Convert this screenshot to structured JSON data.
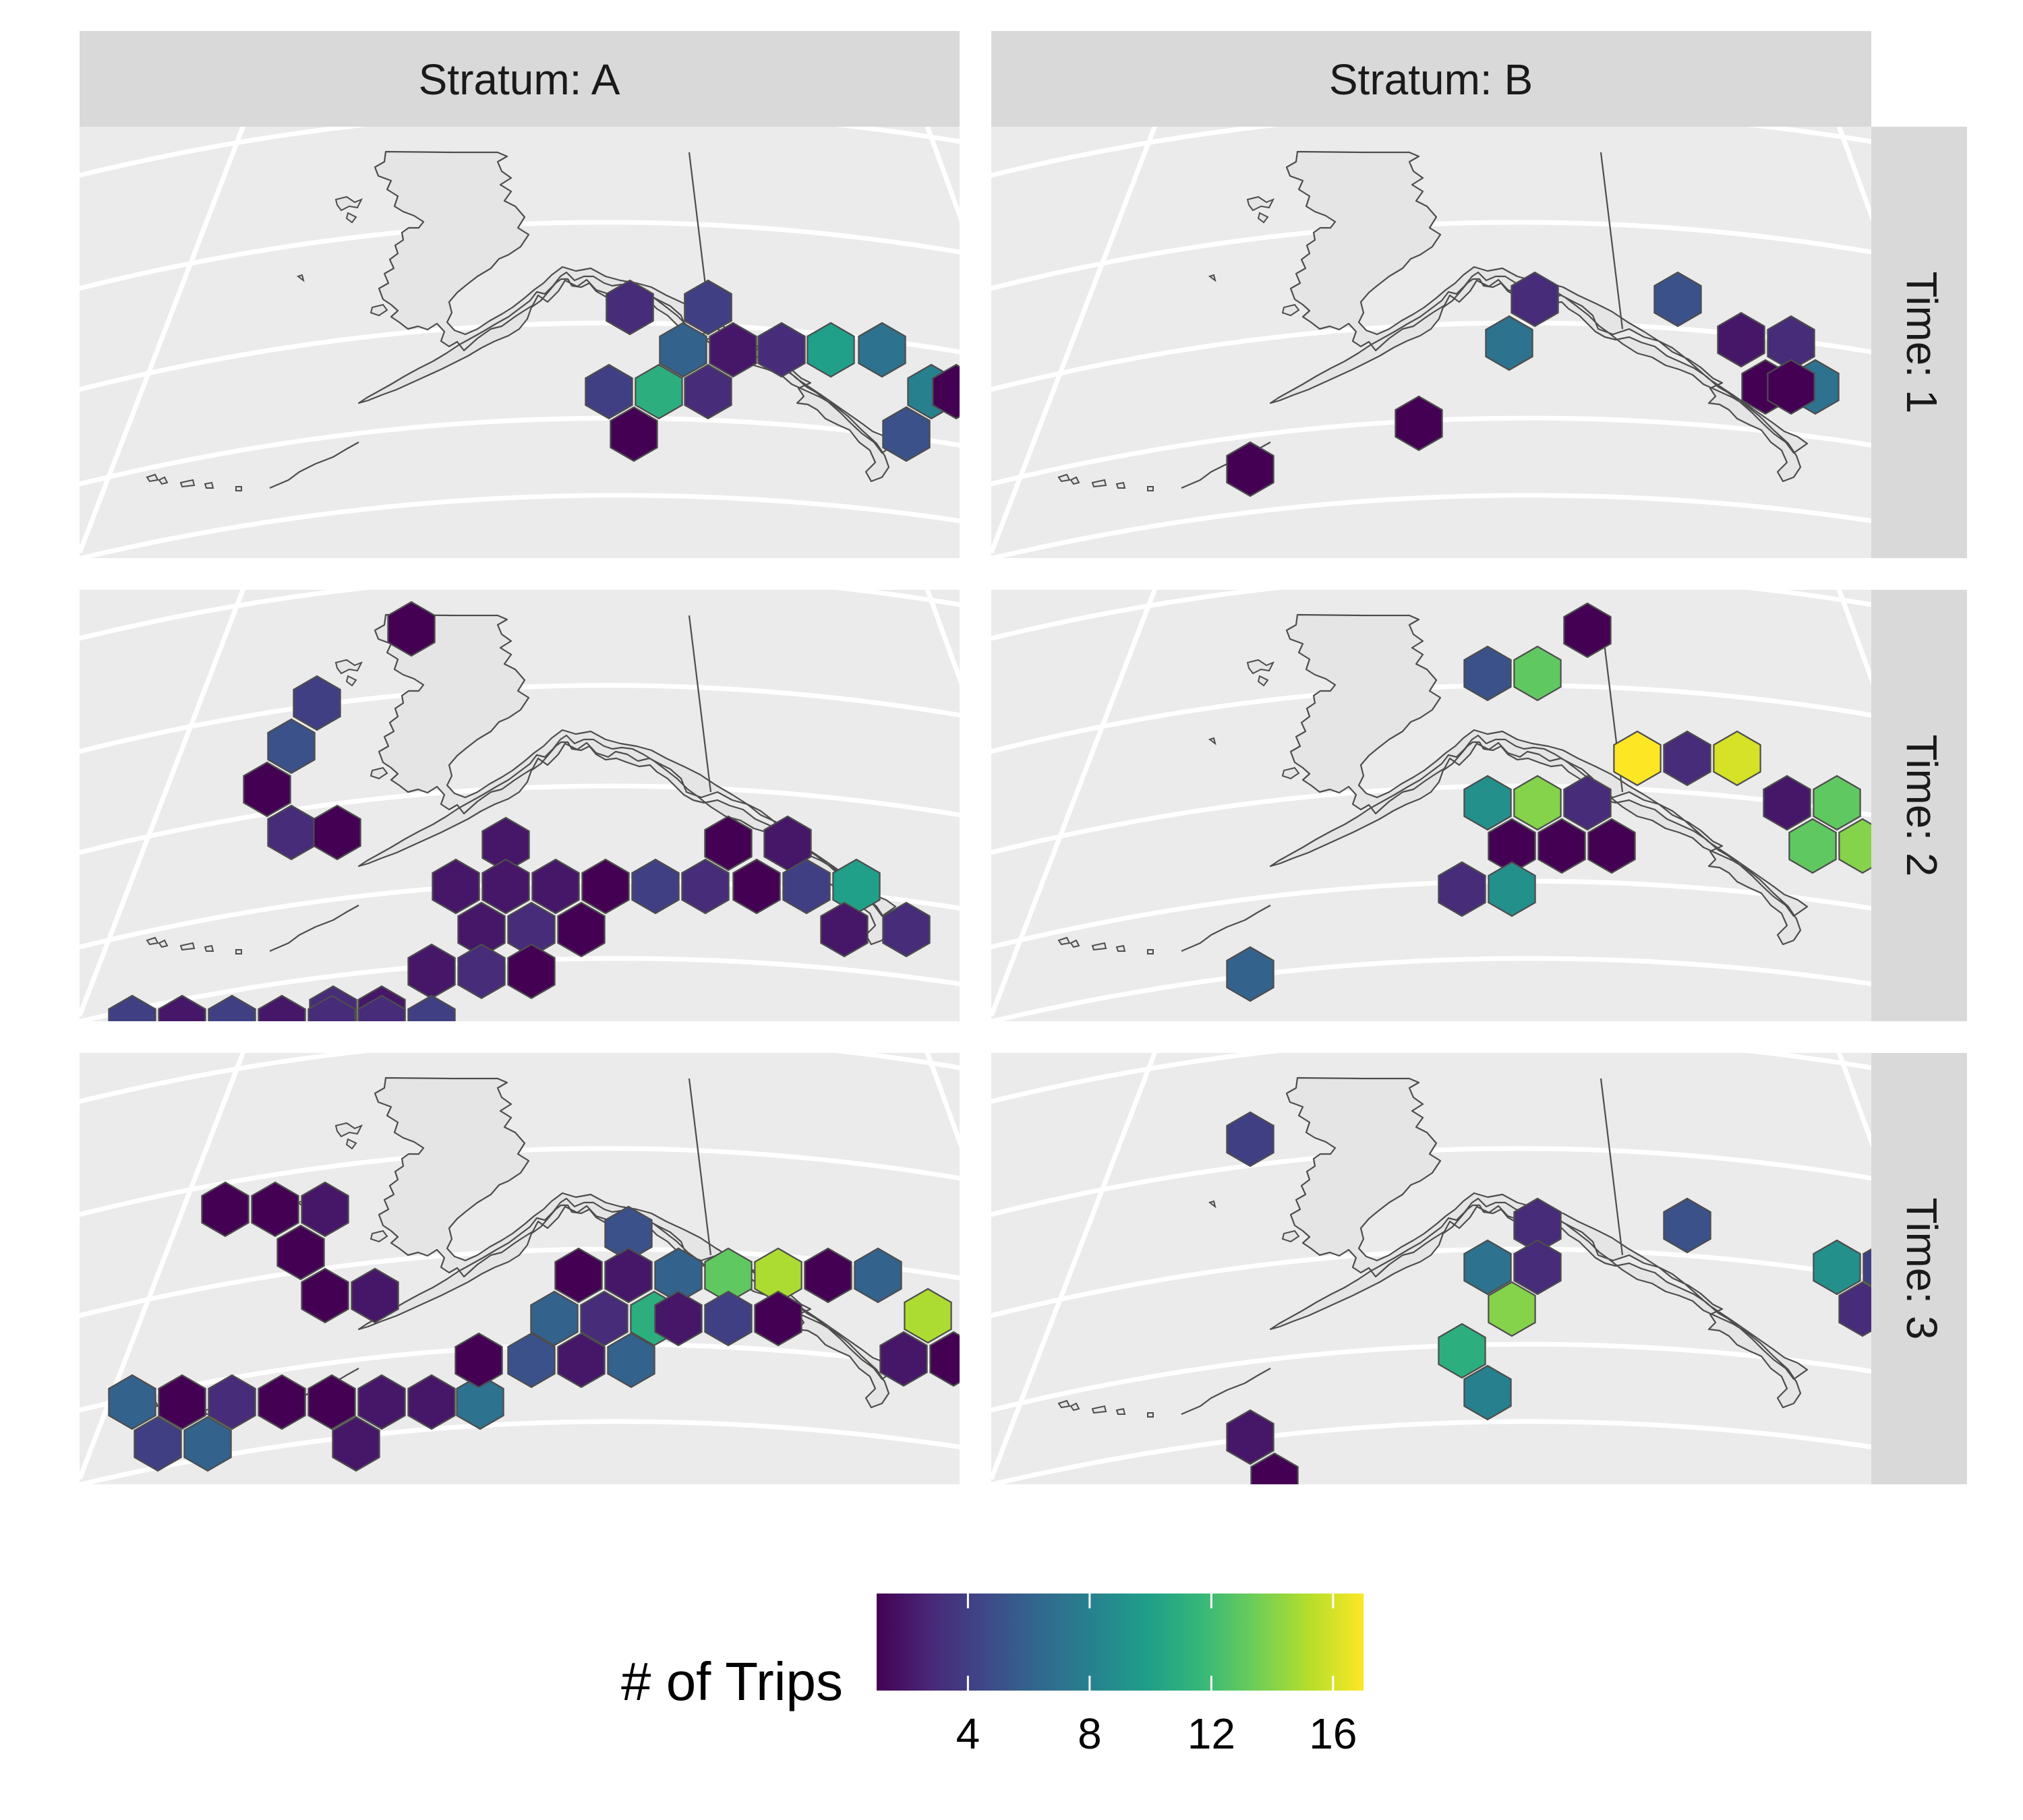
{
  "columns": [
    {
      "label": "Stratum: A"
    },
    {
      "label": "Stratum: B"
    }
  ],
  "rows": [
    {
      "label": "Time: 1"
    },
    {
      "label": "Time: 2"
    },
    {
      "label": "Time: 3"
    }
  ],
  "legend": {
    "title": "# of Trips",
    "min": 1,
    "max": 17,
    "ticks": [
      {
        "value": 4,
        "label": "4"
      },
      {
        "value": 8,
        "label": "8"
      },
      {
        "value": 12,
        "label": "12"
      },
      {
        "value": 16,
        "label": "16"
      }
    ],
    "palette": [
      "#440154",
      "#482878",
      "#3e4989",
      "#31688e",
      "#26828e",
      "#1f9e89",
      "#35b779",
      "#6ece58",
      "#b5de2b",
      "#fde725"
    ]
  },
  "chart_data": {
    "type": "heatmap",
    "value_name": "# of Trips",
    "facet_columns": [
      "Stratum: A",
      "Stratum: B"
    ],
    "facet_rows": [
      "Time: 1",
      "Time: 2",
      "Time: 3"
    ],
    "panels": [
      {
        "stratum": "A",
        "time": 1,
        "hex_values": [
          3,
          2,
          6,
          2,
          3,
          10,
          7,
          8,
          1,
          4,
          11,
          3,
          1,
          5,
          3,
          4
        ]
      },
      {
        "stratum": "B",
        "time": 1,
        "hex_values": [
          3,
          5,
          7,
          2,
          3,
          1,
          7,
          1,
          1,
          1
        ]
      },
      {
        "stratum": "A",
        "time": 2,
        "hex_values": [
          1,
          4,
          5,
          1,
          3,
          1,
          2,
          2,
          2,
          2,
          1,
          4,
          3,
          1,
          4,
          10,
          2,
          3,
          1,
          2,
          3,
          1,
          2,
          3,
          4,
          2,
          4,
          2,
          3,
          3,
          4,
          7,
          2,
          5,
          2,
          3,
          1,
          2
        ]
      },
      {
        "stratum": "B",
        "time": 2,
        "hex_values": [
          1,
          13,
          5,
          17,
          3,
          16,
          9,
          14,
          3,
          2,
          13,
          1,
          1,
          1,
          13,
          14,
          3,
          9,
          6
        ]
      },
      {
        "stratum": "A",
        "time": 3,
        "hex_values": [
          1,
          1,
          2,
          1,
          1,
          2,
          5,
          1,
          2,
          6,
          13,
          15,
          1,
          6,
          15,
          2,
          1,
          6,
          3,
          11,
          5,
          2,
          6,
          7,
          6,
          1,
          3,
          1,
          1,
          2,
          2,
          4,
          6,
          2,
          1,
          2,
          4,
          1
        ]
      },
      {
        "stratum": "B",
        "time": 3,
        "hex_values": [
          4,
          3,
          5,
          7,
          3,
          9,
          4,
          14,
          3,
          11,
          8,
          2,
          1
        ]
      }
    ]
  }
}
